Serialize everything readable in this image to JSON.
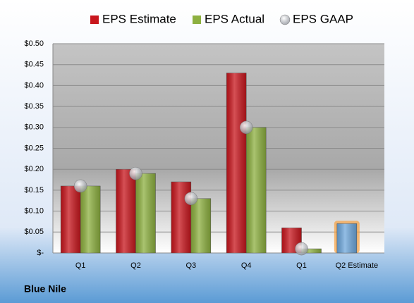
{
  "chart_data": {
    "type": "bar",
    "company": "Blue Nile",
    "categories": [
      "Q1",
      "Q2",
      "Q3",
      "Q4",
      "Q1",
      "Q2 Estimate"
    ],
    "series": [
      {
        "name": "EPS Estimate",
        "color": "#c8161d",
        "values": [
          0.16,
          0.2,
          0.17,
          0.43,
          0.06,
          0.07
        ],
        "point_colors": [
          null,
          null,
          null,
          null,
          null,
          "#6fa8dc"
        ]
      },
      {
        "name": "EPS Actual",
        "color": "#8db040",
        "values": [
          0.16,
          0.19,
          0.13,
          0.3,
          0.01,
          null
        ]
      },
      {
        "name": "EPS GAAP",
        "color": "#b8bcc4",
        "marker": "sphere",
        "values": [
          0.16,
          0.19,
          0.13,
          0.3,
          0.01,
          null
        ]
      }
    ],
    "ylim": [
      0,
      0.5
    ],
    "yticks": [
      {
        "value": 0,
        "label": "$-"
      },
      {
        "value": 0.05,
        "label": "$0.05"
      },
      {
        "value": 0.1,
        "label": "$0.10"
      },
      {
        "value": 0.15,
        "label": "$0.15"
      },
      {
        "value": 0.2,
        "label": "$0.20"
      },
      {
        "value": 0.25,
        "label": "$0.25"
      },
      {
        "value": 0.3,
        "label": "$0.30"
      },
      {
        "value": 0.35,
        "label": "$0.35"
      },
      {
        "value": 0.4,
        "label": "$0.40"
      },
      {
        "value": 0.45,
        "label": "$0.45"
      },
      {
        "value": 0.5,
        "label": "$0.50"
      }
    ],
    "grid": true
  }
}
